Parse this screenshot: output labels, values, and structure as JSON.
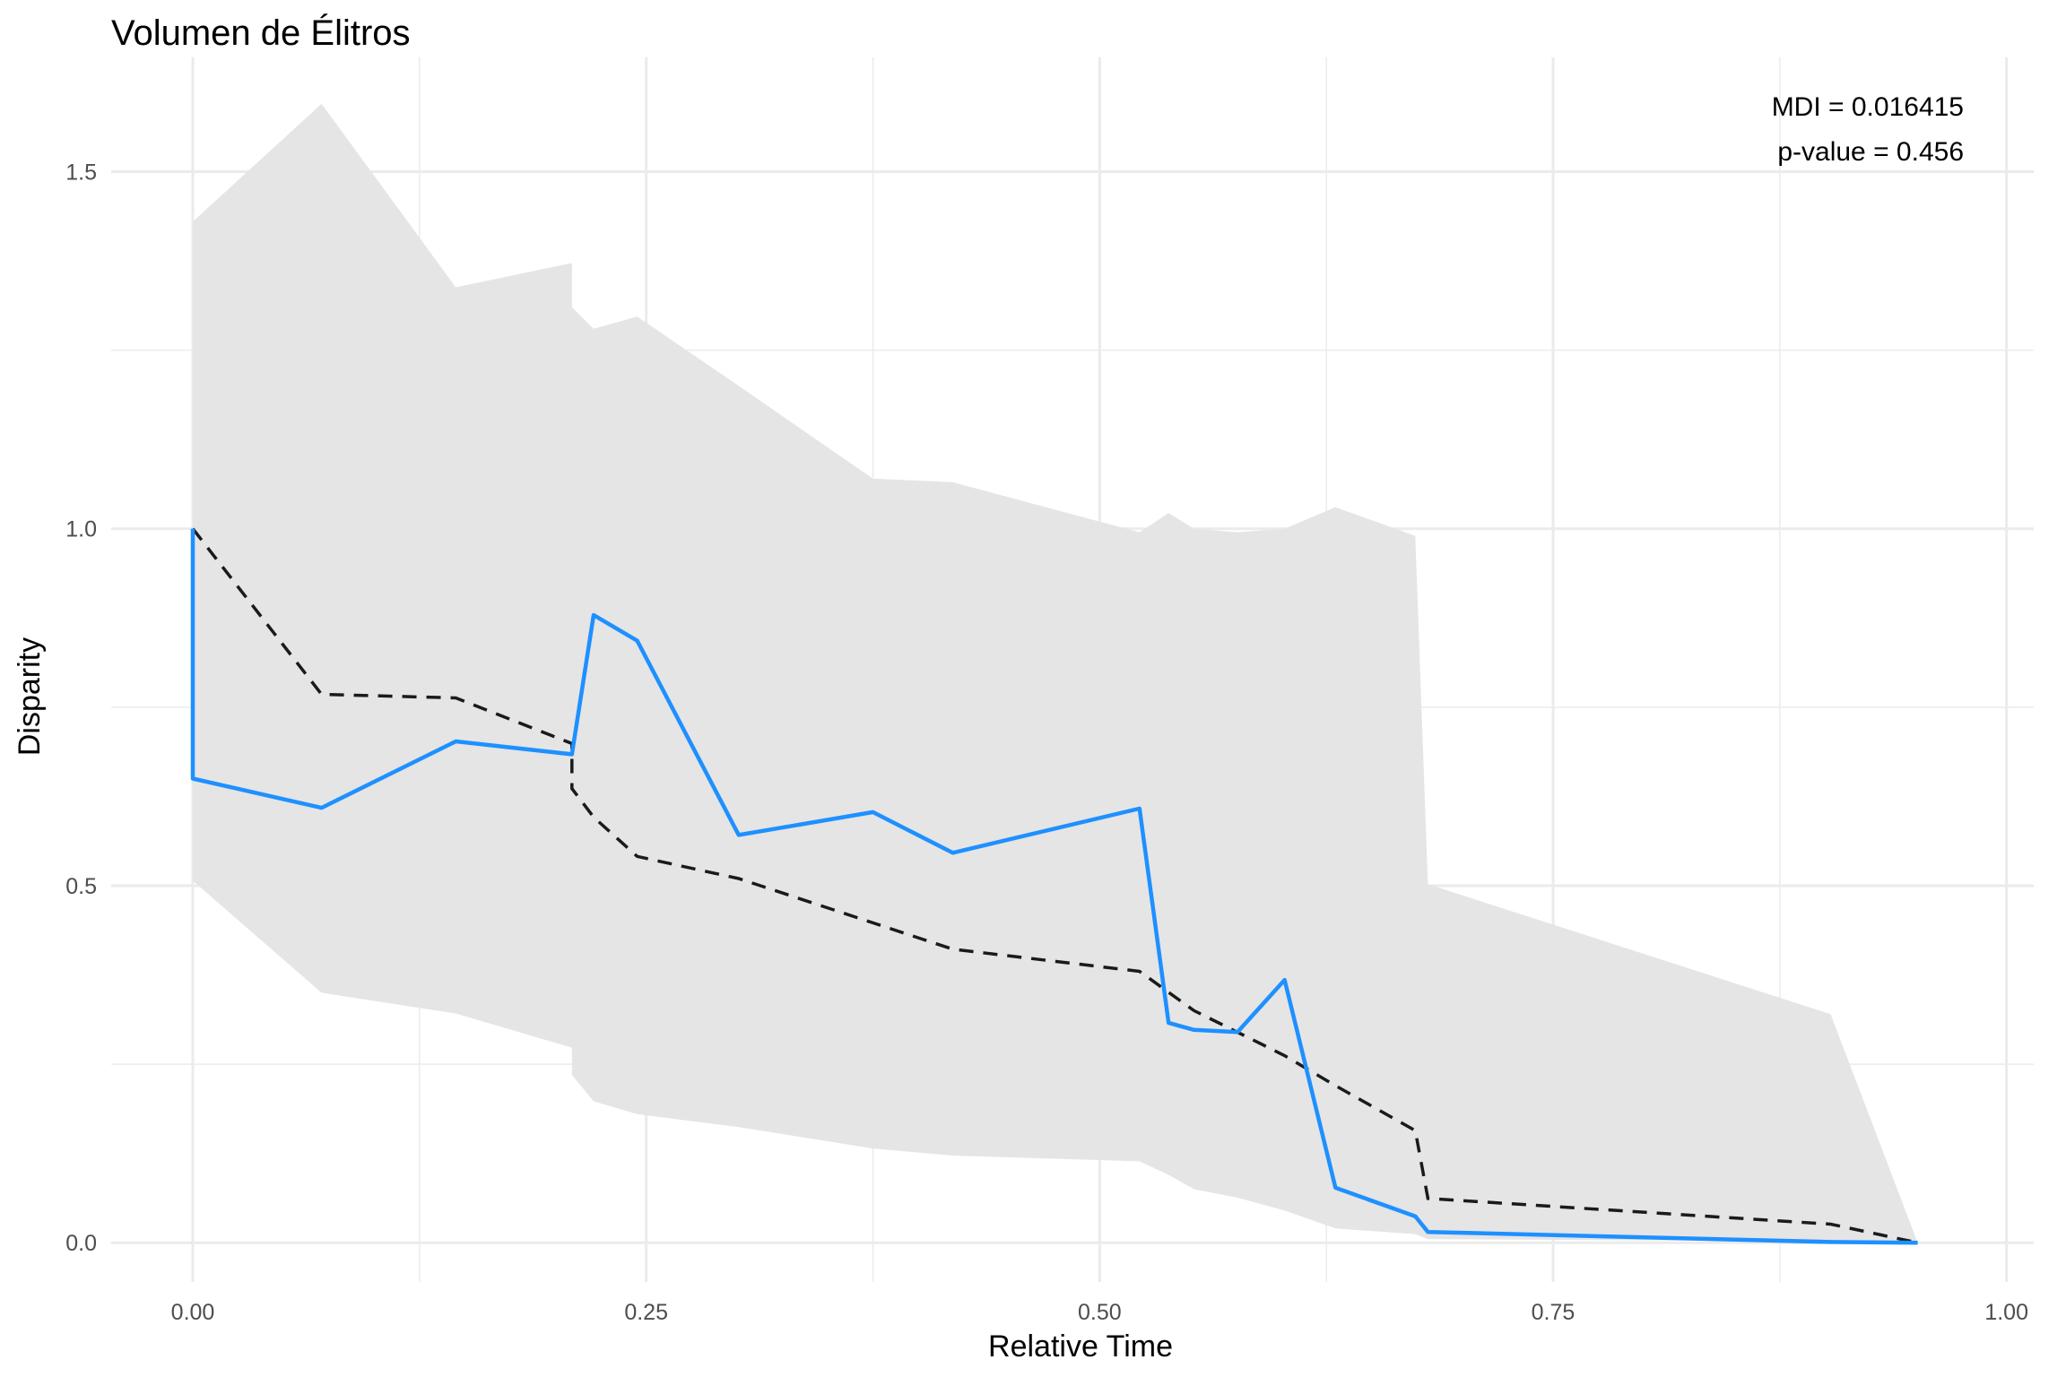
{
  "chart_data": {
    "type": "line",
    "title": "Volumen de Élitros",
    "xlabel": "Relative Time",
    "ylabel": "Disparity",
    "xlim": [
      -0.045,
      1.015
    ],
    "ylim": [
      -0.055,
      1.66
    ],
    "x_ticks": [
      0.0,
      0.25,
      0.5,
      0.75,
      1.0
    ],
    "x_tick_labels": [
      "0.00",
      "0.25",
      "0.50",
      "0.75",
      "1.00"
    ],
    "y_ticks": [
      0.0,
      0.5,
      1.0,
      1.5
    ],
    "y_tick_labels": [
      "0.0",
      "0.5",
      "1.0",
      "1.5"
    ],
    "grid": true,
    "annotations": [
      "MDI = 0.016415",
      "p-value = 0.456"
    ],
    "colors": {
      "observed": "#1e90ff",
      "expected": "#1a1a1a",
      "band": "#e5e5e5",
      "grid": "#ebebeb"
    },
    "series": [
      {
        "style": "solid",
        "x": [
          0.0,
          0.0,
          0.071,
          0.145,
          0.209,
          0.221,
          0.245,
          0.301,
          0.375,
          0.419,
          0.522,
          0.538,
          0.552,
          0.576,
          0.602,
          0.63,
          0.674,
          0.681,
          0.903,
          0.951
        ],
        "y": [
          1.0,
          0.65,
          0.609,
          0.702,
          0.684,
          0.879,
          0.843,
          0.571,
          0.603,
          0.546,
          0.608,
          0.308,
          0.298,
          0.295,
          0.368,
          0.077,
          0.037,
          0.015,
          0.001,
          0.0
        ]
      },
      {
        "style": "dashed",
        "x": [
          0.0,
          0.071,
          0.145,
          0.209,
          0.209,
          0.221,
          0.245,
          0.301,
          0.375,
          0.419,
          0.522,
          0.552,
          0.602,
          0.63,
          0.674,
          0.681,
          0.903,
          0.951
        ],
        "y": [
          1.0,
          0.768,
          0.763,
          0.699,
          0.636,
          0.596,
          0.541,
          0.51,
          0.448,
          0.411,
          0.38,
          0.325,
          0.262,
          0.22,
          0.157,
          0.062,
          0.026,
          0.0
        ]
      }
    ],
    "band": {
      "x": [
        0.0,
        0.071,
        0.145,
        0.209,
        0.209,
        0.221,
        0.245,
        0.301,
        0.375,
        0.419,
        0.522,
        0.538,
        0.552,
        0.576,
        0.602,
        0.63,
        0.674,
        0.681,
        0.903,
        0.951
      ],
      "upper": [
        1.43,
        1.595,
        1.338,
        1.372,
        1.31,
        1.28,
        1.297,
        1.2,
        1.07,
        1.065,
        0.995,
        1.022,
        1.0,
        0.995,
        1.0,
        1.03,
        0.99,
        0.502,
        0.32,
        0.0
      ],
      "lower": [
        0.507,
        0.35,
        0.321,
        0.273,
        0.235,
        0.198,
        0.18,
        0.162,
        0.132,
        0.122,
        0.114,
        0.095,
        0.075,
        0.063,
        0.045,
        0.02,
        0.012,
        0.005,
        0.002,
        0.0
      ]
    }
  }
}
